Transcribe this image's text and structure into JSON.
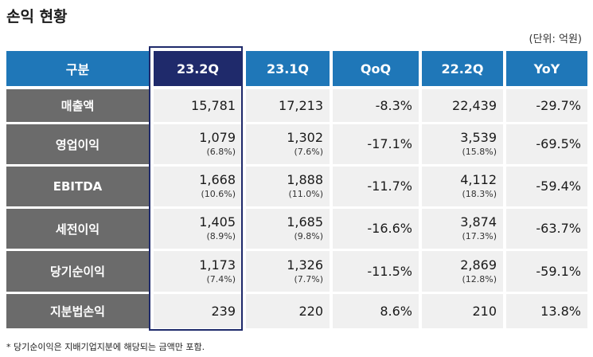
{
  "title": "손익 현황",
  "unit": "(단위: 억원)",
  "header": {
    "label": "구분",
    "columns": [
      "23.2Q",
      "23.1Q",
      "QoQ",
      "22.2Q",
      "YoY"
    ]
  },
  "rows": [
    {
      "label": "매출액",
      "cells": [
        {
          "v": "15,781",
          "s": ""
        },
        {
          "v": "17,213",
          "s": ""
        },
        {
          "v": "-8.3%",
          "s": ""
        },
        {
          "v": "22,439",
          "s": ""
        },
        {
          "v": "-29.7%",
          "s": ""
        }
      ]
    },
    {
      "label": "영업이익",
      "cells": [
        {
          "v": "1,079",
          "s": "(6.8%)"
        },
        {
          "v": "1,302",
          "s": "(7.6%)"
        },
        {
          "v": "-17.1%",
          "s": ""
        },
        {
          "v": "3,539",
          "s": "(15.8%)"
        },
        {
          "v": "-69.5%",
          "s": ""
        }
      ]
    },
    {
      "label": "EBITDA",
      "cells": [
        {
          "v": "1,668",
          "s": "(10.6%)"
        },
        {
          "v": "1,888",
          "s": "(11.0%)"
        },
        {
          "v": "-11.7%",
          "s": ""
        },
        {
          "v": "4,112",
          "s": "(18.3%)"
        },
        {
          "v": "-59.4%",
          "s": ""
        }
      ]
    },
    {
      "label": "세전이익",
      "cells": [
        {
          "v": "1,405",
          "s": "(8.9%)"
        },
        {
          "v": "1,685",
          "s": "(9.8%)"
        },
        {
          "v": "-16.6%",
          "s": ""
        },
        {
          "v": "3,874",
          "s": "(17.3%)"
        },
        {
          "v": "-63.7%",
          "s": ""
        }
      ]
    },
    {
      "label": "당기순이익",
      "cells": [
        {
          "v": "1,173",
          "s": "(7.4%)"
        },
        {
          "v": "1,326",
          "s": "(7.7%)"
        },
        {
          "v": "-11.5%",
          "s": ""
        },
        {
          "v": "2,869",
          "s": "(12.8%)"
        },
        {
          "v": "-59.1%",
          "s": ""
        }
      ]
    },
    {
      "label": "지분법손익",
      "cells": [
        {
          "v": "239",
          "s": ""
        },
        {
          "v": "220",
          "s": ""
        },
        {
          "v": "8.6%",
          "s": ""
        },
        {
          "v": "210",
          "s": ""
        },
        {
          "v": "13.8%",
          "s": ""
        }
      ]
    }
  ],
  "footnote": "* 당기순이익은 지배기업지분에 해당되는 금액만 포함.",
  "colors": {
    "header": "#1f77b8",
    "header_current": "#1f2a6b",
    "label_bg": "#6b6b6b",
    "cell_bg": "#f0f0f0"
  }
}
